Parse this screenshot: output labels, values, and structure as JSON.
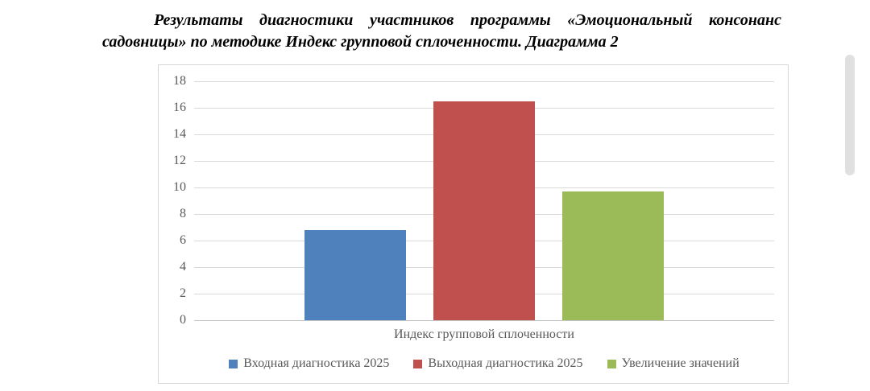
{
  "document": {
    "title_line1": "Результаты диагностики участников программы «Эмоциональный консонанс",
    "title_line2": "садовницы» по методике Индекс групповой сплоченности. Диаграмма 2"
  },
  "chart_data": {
    "type": "bar",
    "title": "",
    "categories": [
      "Индекс групповой сплоченности"
    ],
    "series": [
      {
        "name": "Входная диагностика 2025",
        "color": "#4F81BD",
        "values": [
          6.8
        ]
      },
      {
        "name": "Выходная диагностика 2025",
        "color": "#C0504D",
        "values": [
          16.5
        ]
      },
      {
        "name": "Увеличение значений",
        "color": "#9BBB59",
        "values": [
          9.7
        ]
      }
    ],
    "ylim": [
      0,
      18
    ],
    "yticks": [
      0,
      2,
      4,
      6,
      8,
      10,
      12,
      14,
      16,
      18
    ],
    "grid": true,
    "legend_position": "bottom",
    "plot_colors": {
      "gridline": "#d9d9d9",
      "axis_line": "#c3c3c3",
      "tick_label": "#595959",
      "frame_border": "#d6d6d6"
    }
  }
}
